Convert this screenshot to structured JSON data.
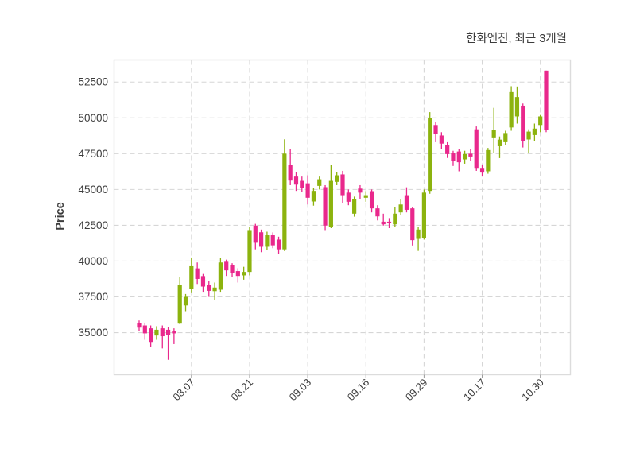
{
  "header": {
    "title": "한화엔진, 최근 3개월"
  },
  "chart_data": {
    "type": "candlestick",
    "title": "한화엔진, 최근 3개월",
    "xlabel": "",
    "ylabel": "Price",
    "y_ticks": [
      35000,
      37500,
      40000,
      42500,
      45000,
      47500,
      50000,
      52500
    ],
    "ylim": [
      32060,
      54040
    ],
    "x_tick_labels": [
      "08.07",
      "08.21",
      "09.03",
      "09.16",
      "09.29",
      "10.17",
      "10.30"
    ],
    "x_tick_indices": [
      9,
      19,
      29,
      39,
      49,
      59,
      69
    ],
    "grid": true,
    "legend_position": "none",
    "up_color": "#8cb30e",
    "down_color": "#e9288c",
    "grid_color": "#d6d6d6",
    "frame_color": "#dcdcdc",
    "text_color": "#3c3c3c",
    "candles_ohlc": [
      [
        35650,
        35850,
        35100,
        35350
      ],
      [
        35500,
        35700,
        34500,
        34950
      ],
      [
        35300,
        35500,
        34000,
        34350
      ],
      [
        34800,
        35450,
        34500,
        35200
      ],
      [
        35300,
        35500,
        33900,
        34750
      ],
      [
        35200,
        35400,
        33100,
        34850
      ],
      [
        35100,
        35300,
        34200,
        34950
      ],
      [
        35630,
        38900,
        35590,
        38340
      ],
      [
        36900,
        37700,
        36500,
        37500
      ],
      [
        38030,
        40250,
        37760,
        39640
      ],
      [
        39490,
        39900,
        38400,
        38750
      ],
      [
        38950,
        39100,
        37800,
        38220
      ],
      [
        38350,
        38600,
        37500,
        37920
      ],
      [
        37900,
        38500,
        37300,
        38150
      ],
      [
        38000,
        40200,
        37800,
        39900
      ],
      [
        39950,
        40100,
        38960,
        39350
      ],
      [
        39730,
        39850,
        38900,
        39170
      ],
      [
        39300,
        39500,
        38500,
        38960
      ],
      [
        39000,
        39600,
        38700,
        39240
      ],
      [
        39240,
        42400,
        39000,
        42110
      ],
      [
        42480,
        42600,
        40820,
        41280
      ],
      [
        42010,
        42200,
        40620,
        41000
      ],
      [
        41000,
        42050,
        40800,
        41800
      ],
      [
        41800,
        42000,
        40900,
        41100
      ],
      [
        41500,
        41700,
        40500,
        40820
      ],
      [
        40820,
        48500,
        40700,
        47500
      ],
      [
        46730,
        47800,
        45300,
        45620
      ],
      [
        45900,
        46200,
        44900,
        45340
      ],
      [
        45600,
        45900,
        44800,
        45100
      ],
      [
        45430,
        45990,
        43950,
        44420
      ],
      [
        44160,
        45080,
        43870,
        44900
      ],
      [
        45250,
        45900,
        45000,
        45710
      ],
      [
        45160,
        45300,
        42110,
        42480
      ],
      [
        42400,
        46700,
        42300,
        45600
      ],
      [
        45530,
        46200,
        45300,
        45990
      ],
      [
        46050,
        46300,
        44050,
        44600
      ],
      [
        44780,
        45000,
        43900,
        44140
      ],
      [
        43310,
        44500,
        43100,
        44330
      ],
      [
        45060,
        45300,
        44300,
        44780
      ],
      [
        44420,
        44880,
        44140,
        44600
      ],
      [
        44880,
        45000,
        43400,
        43680
      ],
      [
        43680,
        43900,
        42840,
        43120
      ],
      [
        42750,
        43310,
        42480,
        42570
      ],
      [
        42750,
        43000,
        42300,
        42660
      ],
      [
        42570,
        43770,
        42400,
        43310
      ],
      [
        43400,
        44320,
        43200,
        43950
      ],
      [
        44600,
        45150,
        43400,
        43580
      ],
      [
        43680,
        43800,
        41090,
        41460
      ],
      [
        41550,
        42400,
        40710,
        42200
      ],
      [
        41600,
        45000,
        41500,
        44780
      ],
      [
        44900,
        50400,
        44700,
        50000
      ],
      [
        49500,
        49700,
        48300,
        48860
      ],
      [
        48770,
        49000,
        47800,
        48200
      ],
      [
        48100,
        48300,
        47200,
        47470
      ],
      [
        47560,
        47700,
        46640,
        47000
      ],
      [
        47650,
        47800,
        46270,
        46900
      ],
      [
        47100,
        47700,
        46800,
        47470
      ],
      [
        47500,
        47800,
        47000,
        47300
      ],
      [
        49200,
        49400,
        46300,
        46450
      ],
      [
        46450,
        46700,
        45900,
        46180
      ],
      [
        46270,
        47900,
        46100,
        47750
      ],
      [
        48580,
        50700,
        47560,
        49140
      ],
      [
        48020,
        48700,
        47190,
        48480
      ],
      [
        48300,
        49100,
        48100,
        48940
      ],
      [
        49330,
        52210,
        49100,
        51800
      ],
      [
        50100,
        52190,
        49600,
        51450
      ],
      [
        50850,
        51000,
        47930,
        48360
      ],
      [
        48490,
        49200,
        47560,
        49040
      ],
      [
        48800,
        49600,
        48400,
        49250
      ],
      [
        49500,
        50200,
        49000,
        50100
      ],
      [
        53300,
        53300,
        49000,
        49140
      ]
    ]
  }
}
